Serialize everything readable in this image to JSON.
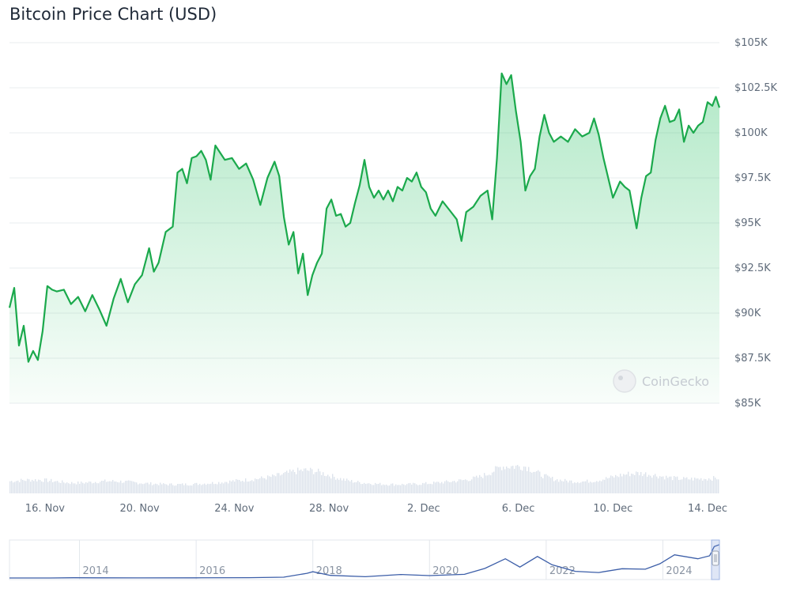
{
  "chart_data": {
    "type": "line",
    "title": "Bitcoin Price Chart (USD)",
    "currency": "USD",
    "yticks": [
      "$85K",
      "$87.5K",
      "$90K",
      "$92.5K",
      "$95K",
      "$97.5K",
      "$100K",
      "$102.5K",
      "$105K"
    ],
    "ytick_values": [
      85000,
      87500,
      90000,
      92500,
      95000,
      97500,
      100000,
      102500,
      105000
    ],
    "ylim": [
      85000,
      105000
    ],
    "xticks": [
      "16. Nov",
      "20. Nov",
      "24. Nov",
      "28. Nov",
      "2. Dec",
      "6. Dec",
      "10. Dec",
      "14. Dec"
    ],
    "xlim_days": [
      0,
      30
    ],
    "xtick_days": [
      1.5,
      5.5,
      9.5,
      13.5,
      17.5,
      21.5,
      25.5,
      29.5
    ],
    "price_series": {
      "name": "Price",
      "color": "#1ba94c",
      "points": [
        [
          0.0,
          90300
        ],
        [
          0.2,
          91400
        ],
        [
          0.4,
          88200
        ],
        [
          0.6,
          89300
        ],
        [
          0.8,
          87300
        ],
        [
          1.0,
          87900
        ],
        [
          1.2,
          87400
        ],
        [
          1.4,
          89000
        ],
        [
          1.6,
          91500
        ],
        [
          1.8,
          91300
        ],
        [
          2.0,
          91200
        ],
        [
          2.3,
          91300
        ],
        [
          2.6,
          90500
        ],
        [
          2.9,
          90900
        ],
        [
          3.2,
          90100
        ],
        [
          3.5,
          91000
        ],
        [
          3.8,
          90200
        ],
        [
          4.1,
          89300
        ],
        [
          4.4,
          90800
        ],
        [
          4.7,
          91900
        ],
        [
          5.0,
          90600
        ],
        [
          5.3,
          91600
        ],
        [
          5.6,
          92100
        ],
        [
          5.9,
          93600
        ],
        [
          6.1,
          92300
        ],
        [
          6.3,
          92800
        ],
        [
          6.6,
          94500
        ],
        [
          6.9,
          94800
        ],
        [
          7.1,
          97800
        ],
        [
          7.3,
          98000
        ],
        [
          7.5,
          97200
        ],
        [
          7.7,
          98600
        ],
        [
          7.9,
          98700
        ],
        [
          8.1,
          99000
        ],
        [
          8.3,
          98500
        ],
        [
          8.5,
          97400
        ],
        [
          8.7,
          99300
        ],
        [
          8.9,
          98900
        ],
        [
          9.1,
          98500
        ],
        [
          9.4,
          98600
        ],
        [
          9.7,
          98000
        ],
        [
          10.0,
          98300
        ],
        [
          10.3,
          97400
        ],
        [
          10.6,
          96000
        ],
        [
          10.9,
          97500
        ],
        [
          11.2,
          98400
        ],
        [
          11.4,
          97600
        ],
        [
          11.6,
          95300
        ],
        [
          11.8,
          93800
        ],
        [
          12.0,
          94500
        ],
        [
          12.2,
          92200
        ],
        [
          12.4,
          93300
        ],
        [
          12.6,
          91000
        ],
        [
          12.8,
          92100
        ],
        [
          13.0,
          92800
        ],
        [
          13.2,
          93300
        ],
        [
          13.4,
          95800
        ],
        [
          13.6,
          96300
        ],
        [
          13.8,
          95400
        ],
        [
          14.0,
          95500
        ],
        [
          14.2,
          94800
        ],
        [
          14.4,
          95000
        ],
        [
          14.6,
          96100
        ],
        [
          14.8,
          97100
        ],
        [
          15.0,
          98500
        ],
        [
          15.2,
          97000
        ],
        [
          15.4,
          96400
        ],
        [
          15.6,
          96800
        ],
        [
          15.8,
          96300
        ],
        [
          16.0,
          96800
        ],
        [
          16.2,
          96200
        ],
        [
          16.4,
          97000
        ],
        [
          16.6,
          96800
        ],
        [
          16.8,
          97500
        ],
        [
          17.0,
          97300
        ],
        [
          17.2,
          97800
        ],
        [
          17.4,
          97000
        ],
        [
          17.6,
          96700
        ],
        [
          17.8,
          95800
        ],
        [
          18.0,
          95400
        ],
        [
          18.3,
          96200
        ],
        [
          18.6,
          95700
        ],
        [
          18.9,
          95200
        ],
        [
          19.1,
          94000
        ],
        [
          19.3,
          95600
        ],
        [
          19.6,
          95900
        ],
        [
          19.9,
          96500
        ],
        [
          20.2,
          96800
        ],
        [
          20.4,
          95200
        ],
        [
          20.6,
          98600
        ],
        [
          20.8,
          103300
        ],
        [
          21.0,
          102700
        ],
        [
          21.2,
          103200
        ],
        [
          21.4,
          101200
        ],
        [
          21.6,
          99500
        ],
        [
          21.8,
          96800
        ],
        [
          22.0,
          97600
        ],
        [
          22.2,
          98000
        ],
        [
          22.4,
          99800
        ],
        [
          22.6,
          101000
        ],
        [
          22.8,
          100000
        ],
        [
          23.0,
          99500
        ],
        [
          23.3,
          99800
        ],
        [
          23.6,
          99500
        ],
        [
          23.9,
          100200
        ],
        [
          24.2,
          99800
        ],
        [
          24.5,
          100000
        ],
        [
          24.7,
          100800
        ],
        [
          24.9,
          99900
        ],
        [
          25.1,
          98600
        ],
        [
          25.3,
          97500
        ],
        [
          25.5,
          96400
        ],
        [
          25.8,
          97300
        ],
        [
          26.0,
          97000
        ],
        [
          26.2,
          96800
        ],
        [
          26.5,
          94700
        ],
        [
          26.7,
          96400
        ],
        [
          26.9,
          97600
        ],
        [
          27.1,
          97800
        ],
        [
          27.3,
          99600
        ],
        [
          27.5,
          100800
        ],
        [
          27.7,
          101500
        ],
        [
          27.9,
          100600
        ],
        [
          28.1,
          100700
        ],
        [
          28.3,
          101300
        ],
        [
          28.5,
          99500
        ],
        [
          28.7,
          100400
        ],
        [
          28.9,
          100000
        ],
        [
          29.1,
          100400
        ],
        [
          29.3,
          100600
        ],
        [
          29.5,
          101700
        ],
        [
          29.7,
          101500
        ],
        [
          29.85,
          102000
        ],
        [
          30.0,
          101400
        ]
      ]
    },
    "watermark": "CoinGecko",
    "navigator": {
      "xticks": [
        "2014",
        "2016",
        "2018",
        "2020",
        "2022",
        "2024"
      ],
      "xtick_years": [
        2014,
        2016,
        2018,
        2020,
        2022,
        2024
      ],
      "xlim_years": [
        2012.8,
        2024.97
      ],
      "ylim_usd": [
        0,
        110000
      ],
      "points": [
        [
          2012.8,
          12
        ],
        [
          2013.5,
          100
        ],
        [
          2013.9,
          800
        ],
        [
          2014.3,
          450
        ],
        [
          2015.0,
          250
        ],
        [
          2016.0,
          430
        ],
        [
          2016.9,
          900
        ],
        [
          2017.5,
          2500
        ],
        [
          2017.9,
          14000
        ],
        [
          2018.0,
          19000
        ],
        [
          2018.3,
          8000
        ],
        [
          2018.9,
          3800
        ],
        [
          2019.5,
          10500
        ],
        [
          2020.0,
          7200
        ],
        [
          2020.6,
          11000
        ],
        [
          2020.95,
          29000
        ],
        [
          2021.3,
          58000
        ],
        [
          2021.55,
          33000
        ],
        [
          2021.85,
          65000
        ],
        [
          2022.1,
          40000
        ],
        [
          2022.5,
          20000
        ],
        [
          2022.9,
          16500
        ],
        [
          2023.3,
          28000
        ],
        [
          2023.7,
          26500
        ],
        [
          2023.95,
          43000
        ],
        [
          2024.2,
          70000
        ],
        [
          2024.6,
          58000
        ],
        [
          2024.8,
          67000
        ],
        [
          2024.88,
          95000
        ],
        [
          2024.97,
          101000
        ]
      ]
    }
  }
}
